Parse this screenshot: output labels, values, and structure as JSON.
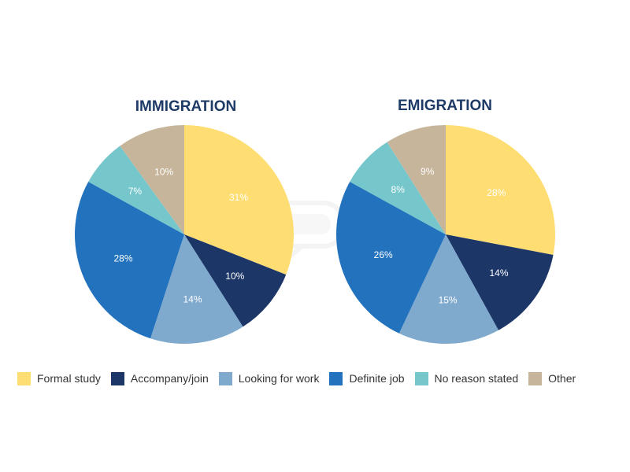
{
  "legend_placement": "bottom",
  "colors": {
    "Formal study": "#fede73",
    "Accompany/join": "#1d3668",
    "Looking for work": "#7faacd",
    "Definite job": "#2272bd",
    "No reason stated": "#76c7cb",
    "Other": "#c6b59b"
  },
  "chart_data": [
    {
      "type": "pie",
      "title": "IMMIGRATION",
      "categories": [
        "Formal study",
        "Accompany/join",
        "Looking for work",
        "Definite job",
        "No reason stated",
        "Other"
      ],
      "values": [
        31,
        10,
        14,
        28,
        7,
        10
      ],
      "labels": [
        "31%",
        "10%",
        "14%",
        "28%",
        "7%",
        "10%"
      ]
    },
    {
      "type": "pie",
      "title": "EMIGRATION",
      "categories": [
        "Formal study",
        "Accompany/join",
        "Looking for work",
        "Definite job",
        "No reason stated",
        "Other"
      ],
      "values": [
        28,
        14,
        15,
        26,
        8,
        9
      ],
      "labels": [
        "28%",
        "14%",
        "15%",
        "26%",
        "8%",
        "9%"
      ]
    }
  ]
}
